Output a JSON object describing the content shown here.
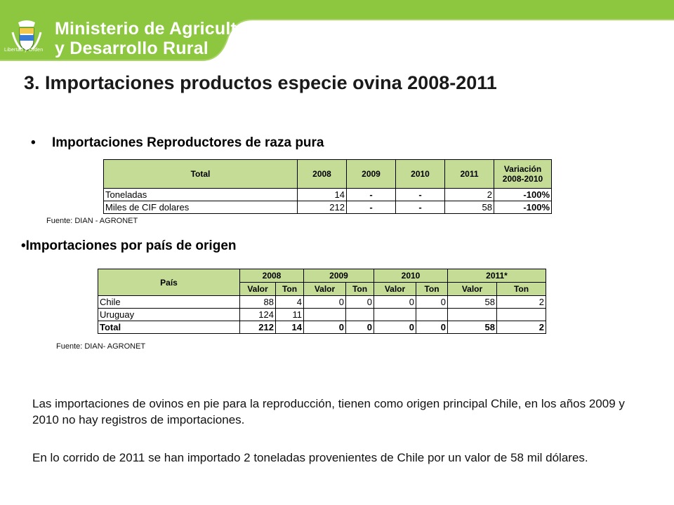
{
  "header": {
    "brand_line1": "Ministerio de Agricultura",
    "brand_line2": "y Desarrollo Rural",
    "motto": "Libertad y Orden",
    "colors": {
      "brand_green": "#8dc63f",
      "table_header": "#c4dc96"
    }
  },
  "title": "3. Importaciones productos especie ovina 2008-2011",
  "section1": {
    "bullet": "•",
    "heading": "Importaciones Reproductores de raza pura",
    "table": {
      "headers": [
        "Total",
        "2008",
        "2009",
        "2010",
        "2011",
        "Variación 2008-2010"
      ],
      "rows": [
        [
          "Toneladas",
          "14",
          "-",
          "-",
          "2",
          "-100%"
        ],
        [
          "Miles de CIF dolares",
          "212",
          "-",
          "-",
          "58",
          "-100%"
        ]
      ]
    },
    "source": "Fuente: DIAN - AGRONET"
  },
  "section2": {
    "heading": "•Importaciones por país de origen",
    "table": {
      "country_header": "País",
      "years": [
        "2008",
        "2009",
        "2010",
        "2011*"
      ],
      "sub_headers": [
        "Valor",
        "Ton",
        "Valor",
        "Ton",
        "Valor",
        "Ton",
        "Valor",
        "Ton"
      ],
      "rows": [
        [
          "Chile",
          "88",
          "4",
          "0",
          "0",
          "0",
          "0",
          "58",
          "2"
        ],
        [
          "Uruguay",
          "124",
          "11",
          "",
          "",
          "",
          "",
          "",
          ""
        ],
        [
          "Total",
          "212",
          "14",
          "0",
          "0",
          "0",
          "0",
          "58",
          "2"
        ]
      ]
    },
    "source": "Fuente: DIAN- AGRONET"
  },
  "paragraphs": [
    "Las importaciones de ovinos en pie para la reproducción, tienen como origen principal Chile, en los años 2009 y 2010 no hay registros de importaciones.",
    "En lo corrido de 2011 se han importado 2 toneladas provenientes de Chile por un valor de 58 mil dólares."
  ]
}
